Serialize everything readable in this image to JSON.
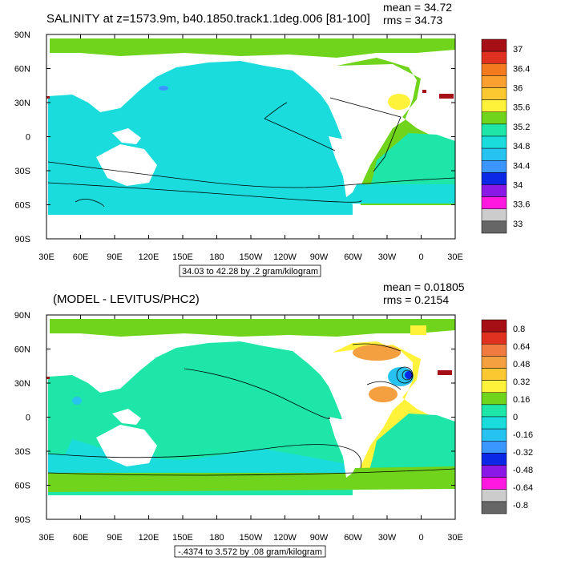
{
  "chart_data": [
    {
      "type": "heatmap",
      "title": "SALINITY at z=1573.9m, b40.1850.track1.1deg.006 [81-100]",
      "stats": {
        "mean": "mean = 34.72",
        "rms": "rms = 34.73"
      },
      "xticks": [
        "30E",
        "60E",
        "90E",
        "120E",
        "150E",
        "180",
        "150W",
        "120W",
        "90W",
        "60W",
        "30W",
        "0",
        "30E"
      ],
      "yticks": [
        "90N",
        "60N",
        "30N",
        "0",
        "30S",
        "60S",
        "90S"
      ],
      "ylim": [
        -90,
        90
      ],
      "xlim": [
        30,
        390
      ],
      "contour_info": "34.03 to 42.28 by .2 gram/kilogram",
      "colorbar": {
        "labels": [
          "37",
          "36.4",
          "36",
          "35.6",
          "35.2",
          "34.8",
          "34.4",
          "34",
          "33.6",
          "33"
        ],
        "colors": [
          "#a50f15",
          "#e03020",
          "#f47a20",
          "#f9a030",
          "#fcc832",
          "#fff23a",
          "#6fd41b",
          "#1ee6a8",
          "#1bdcdc",
          "#26c2f0",
          "#3c96ff",
          "#0a28e6",
          "#8a18e6",
          "#ff18e0",
          "#cccccc",
          "#666666"
        ]
      }
    },
    {
      "type": "heatmap",
      "title": "(MODEL - LEVITUS/PHC2)",
      "stats": {
        "mean": "mean = 0.01805",
        "rms": "rms = 0.2154"
      },
      "xticks": [
        "30E",
        "60E",
        "90E",
        "120E",
        "150E",
        "180",
        "150W",
        "120W",
        "90W",
        "60W",
        "30W",
        "0",
        "30E"
      ],
      "yticks": [
        "90N",
        "60N",
        "30N",
        "0",
        "30S",
        "60S",
        "90S"
      ],
      "ylim": [
        -90,
        90
      ],
      "xlim": [
        30,
        390
      ],
      "contour_info": "-.4374 to 3.572 by .08 gram/kilogram",
      "colorbar": {
        "labels": [
          "0.8",
          "0.64",
          "0.48",
          "0.32",
          "0.16",
          "0",
          "-0.16",
          "-0.32",
          "-0.48",
          "-0.64",
          "-0.8"
        ],
        "colors": [
          "#a50f15",
          "#e03020",
          "#f07a40",
          "#f4a040",
          "#fcc832",
          "#fff23a",
          "#6fd41b",
          "#1ee6a8",
          "#1bdcdc",
          "#26c2f0",
          "#3c96ff",
          "#0a28e6",
          "#8a18e6",
          "#ff18e0",
          "#cccccc",
          "#666666"
        ]
      }
    }
  ]
}
